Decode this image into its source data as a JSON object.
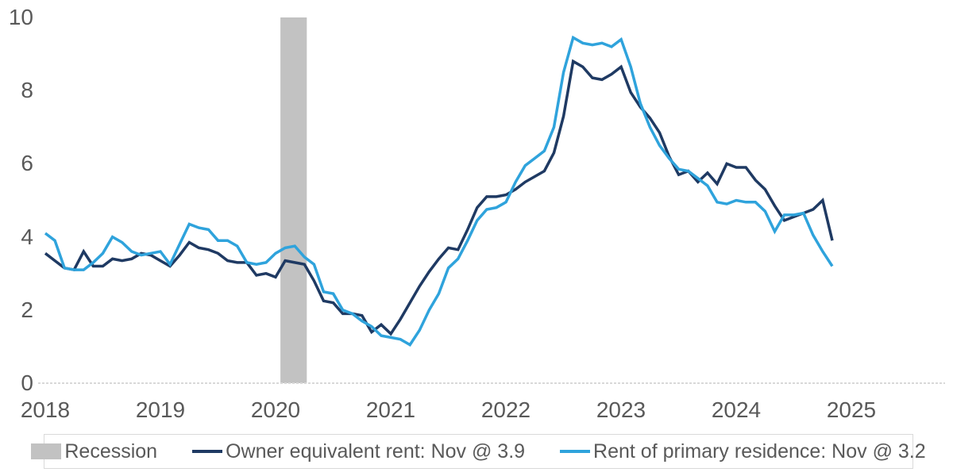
{
  "chart_data": {
    "type": "line",
    "title": "",
    "xlabel": "",
    "ylabel": "",
    "x_start": "2018-01",
    "x_end": "2024-11",
    "x_frequency": "monthly",
    "x_tick_labels": [
      "2018",
      "2019",
      "2020",
      "2021",
      "2022",
      "2023",
      "2024",
      "2025"
    ],
    "y_ticks": [
      "0",
      "2",
      "4",
      "6",
      "8",
      "10"
    ],
    "ylim": [
      0,
      10
    ],
    "grid": false,
    "legend_position": "bottom",
    "recession_band": {
      "label": "Recession",
      "from": "2020-02",
      "to": "2020-04",
      "color": "#c2c2c2"
    },
    "series": [
      {
        "name": "Owner equivalent rent: Nov @ 3.9",
        "color": "#1f3a63",
        "last_point_label": "Nov @ 3.9",
        "values": [
          3.55,
          3.35,
          3.15,
          3.1,
          3.6,
          3.2,
          3.2,
          3.4,
          3.35,
          3.4,
          3.55,
          3.5,
          3.35,
          3.2,
          3.5,
          3.85,
          3.7,
          3.65,
          3.55,
          3.35,
          3.3,
          3.3,
          2.95,
          3.0,
          2.9,
          3.35,
          3.3,
          3.25,
          2.8,
          2.25,
          2.2,
          1.9,
          1.9,
          1.85,
          1.4,
          1.6,
          1.35,
          1.75,
          2.2,
          2.65,
          3.05,
          3.4,
          3.7,
          3.65,
          4.2,
          4.8,
          5.1,
          5.1,
          5.15,
          5.3,
          5.5,
          5.65,
          5.8,
          6.3,
          7.3,
          8.8,
          8.65,
          8.35,
          8.3,
          8.45,
          8.65,
          7.95,
          7.55,
          7.25,
          6.85,
          6.2,
          5.7,
          5.8,
          5.5,
          5.75,
          5.45,
          6.0,
          5.9,
          5.9,
          5.55,
          5.3,
          4.85,
          4.45,
          4.55,
          4.65,
          4.75,
          5.0,
          3.9
        ]
      },
      {
        "name": "Rent of primary residence: Nov @ 3.2",
        "color": "#2fa3dc",
        "last_point_label": "Nov @ 3.2",
        "values": [
          4.1,
          3.9,
          3.15,
          3.1,
          3.1,
          3.3,
          3.55,
          4.0,
          3.85,
          3.6,
          3.5,
          3.55,
          3.6,
          3.25,
          3.8,
          4.35,
          4.25,
          4.2,
          3.9,
          3.9,
          3.75,
          3.3,
          3.25,
          3.3,
          3.55,
          3.7,
          3.75,
          3.45,
          3.25,
          2.5,
          2.45,
          2.0,
          1.9,
          1.7,
          1.55,
          1.3,
          1.25,
          1.2,
          1.05,
          1.45,
          2.0,
          2.45,
          3.15,
          3.4,
          3.9,
          4.45,
          4.75,
          4.8,
          4.95,
          5.5,
          5.95,
          6.15,
          6.35,
          7.0,
          8.5,
          9.45,
          9.3,
          9.25,
          9.3,
          9.2,
          9.4,
          8.65,
          7.65,
          7.0,
          6.5,
          6.15,
          5.85,
          5.8,
          5.6,
          5.4,
          4.95,
          4.9,
          5.0,
          4.95,
          4.95,
          4.7,
          4.15,
          4.6,
          4.6,
          4.65,
          4.05,
          3.6,
          3.2
        ]
      }
    ]
  },
  "legend": {
    "recession_label": "Recession",
    "series1_label": "Owner equivalent rent: Nov @ 3.9",
    "series2_label": "Rent of primary residence: Nov @ 3.2"
  },
  "colors": {
    "owner_equivalent_rent": "#1f3a63",
    "rent_primary_residence": "#2fa3dc",
    "recession": "#c2c2c2",
    "axis_text": "#595959",
    "axis_line": "#d8d8d8",
    "legend_border": "#d9d9d9"
  }
}
